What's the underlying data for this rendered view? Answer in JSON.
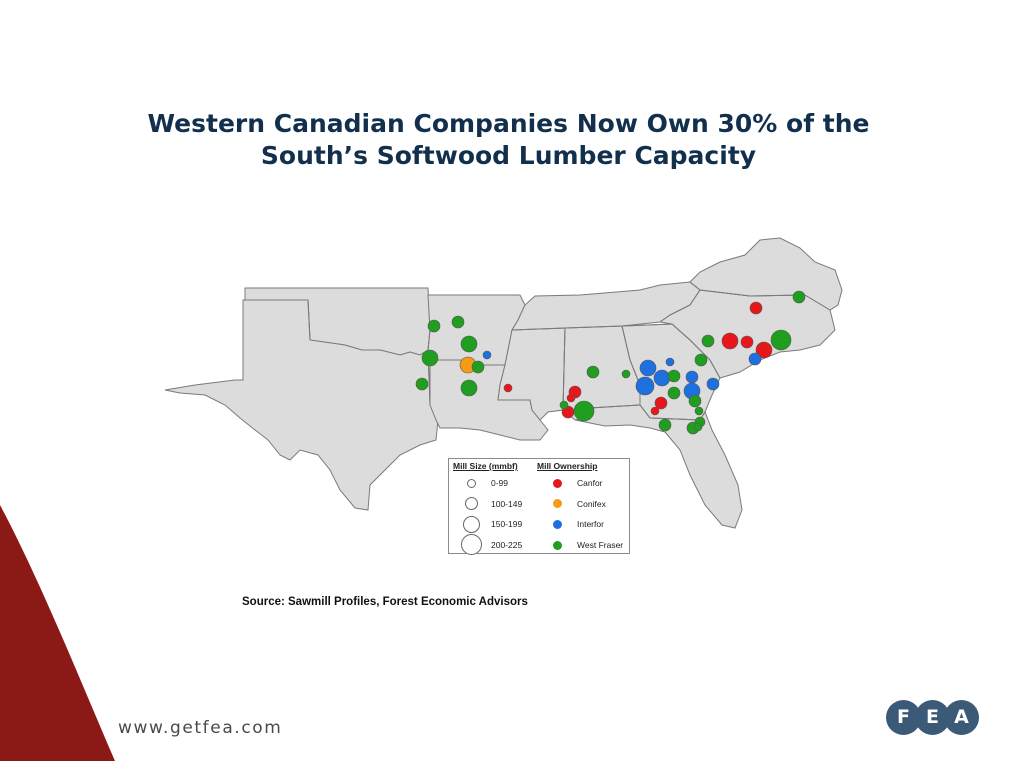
{
  "slide": {
    "title_line1": "Western Canadian Companies Now Own 30% of the",
    "title_line2": "South’s Softwood Lumber Capacity",
    "source": "Source: Sawmill Profiles, Forest Economic Advisors",
    "website": "www.getfea.com",
    "logo_letters": [
      "F",
      "E",
      "A"
    ],
    "accent_color": "#8b1a16",
    "logo_color": "#3b5a78"
  },
  "legend": {
    "size_header": "Mill Size (mmbf)",
    "ownership_header": "Mill Ownership",
    "sizes": [
      "0-99",
      "100-149",
      "150-199",
      "200-225"
    ],
    "owners": [
      {
        "name": "Canfor",
        "color": "#e8171c"
      },
      {
        "name": "Conifex",
        "color": "#f59b16"
      },
      {
        "name": "Interfor",
        "color": "#1e6fe0"
      },
      {
        "name": "West Fraser",
        "color": "#1f9e1f"
      }
    ]
  },
  "map": {
    "land_color": "#dcdcdc",
    "border_color": "#7a7a7a"
  }
}
